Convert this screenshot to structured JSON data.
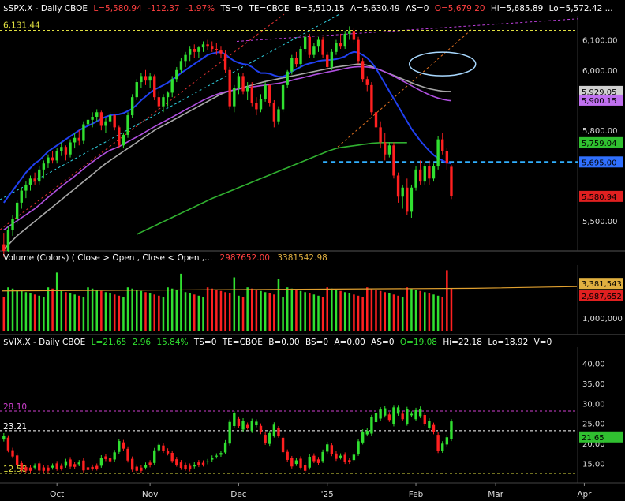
{
  "chart_data": [
    {
      "type": "candlestick",
      "panel": "price",
      "header": {
        "symbol": "$SPX.X - Daily  CBOE",
        "last": "L=5,580.94",
        "change": "-112.37",
        "pct": "-1.97%",
        "ts": "TS=0",
        "te": "TE=CBOE",
        "bid": "B=5,510.15",
        "ask": "A=5,630.49",
        "as": "AS=0",
        "open": "O=5,679.20",
        "hi": "Hi=5,685.89",
        "lo": "Lo=5,572.42 ..."
      },
      "y_ticks": [
        5500,
        5600,
        5700,
        5800,
        6000,
        6100
      ],
      "y_tick_labels": [
        "5,500.00",
        "",
        "",
        "5,800.00",
        "6,000.00",
        "6,100.00"
      ],
      "ylim": [
        5400,
        6180
      ],
      "hline": {
        "value": 6131.44,
        "label": "6,131.44"
      },
      "support_line": {
        "value": 5695
      },
      "badges": [
        {
          "label": "5,929.05",
          "value": 5929.05,
          "color": "#d0d0d0"
        },
        {
          "label": "5,900.15",
          "value": 5900.15,
          "color": "#c070f0"
        },
        {
          "label": "5,759.04",
          "value": 5759.04,
          "color": "#30c030"
        },
        {
          "label": "5,695.00",
          "value": 5695,
          "color": "#3070ff"
        },
        {
          "label": "5,580.94",
          "value": 5580.94,
          "color": "#e02020"
        }
      ],
      "candles_ohlc": [
        [
          5422,
          5460,
          5380,
          5400
        ],
        [
          5400,
          5480,
          5395,
          5470
        ],
        [
          5470,
          5520,
          5450,
          5505
        ],
        [
          5505,
          5570,
          5490,
          5560
        ],
        [
          5560,
          5610,
          5540,
          5600
        ],
        [
          5600,
          5630,
          5575,
          5620
        ],
        [
          5620,
          5650,
          5600,
          5640
        ],
        [
          5640,
          5660,
          5620,
          5630
        ],
        [
          5630,
          5680,
          5620,
          5670
        ],
        [
          5670,
          5700,
          5640,
          5690
        ],
        [
          5690,
          5720,
          5675,
          5710
        ],
        [
          5710,
          5730,
          5690,
          5700
        ],
        [
          5700,
          5740,
          5690,
          5730
        ],
        [
          5730,
          5760,
          5715,
          5745
        ],
        [
          5745,
          5750,
          5700,
          5720
        ],
        [
          5720,
          5770,
          5710,
          5760
        ],
        [
          5760,
          5790,
          5740,
          5775
        ],
        [
          5775,
          5800,
          5750,
          5765
        ],
        [
          5765,
          5830,
          5755,
          5820
        ],
        [
          5820,
          5850,
          5800,
          5835
        ],
        [
          5835,
          5860,
          5810,
          5845
        ],
        [
          5845,
          5870,
          5830,
          5860
        ],
        [
          5860,
          5865,
          5800,
          5815
        ],
        [
          5815,
          5840,
          5790,
          5830
        ],
        [
          5830,
          5860,
          5815,
          5850
        ],
        [
          5850,
          5855,
          5800,
          5810
        ],
        [
          5810,
          5815,
          5740,
          5750
        ],
        [
          5750,
          5790,
          5740,
          5785
        ],
        [
          5785,
          5860,
          5775,
          5850
        ],
        [
          5850,
          5920,
          5840,
          5910
        ],
        [
          5910,
          5970,
          5900,
          5960
        ],
        [
          5960,
          5990,
          5940,
          5980
        ],
        [
          5980,
          6000,
          5950,
          5965
        ],
        [
          5965,
          5990,
          5940,
          5980
        ],
        [
          5980,
          5985,
          5900,
          5910
        ],
        [
          5910,
          5930,
          5870,
          5880
        ],
        [
          5880,
          5920,
          5860,
          5910
        ],
        [
          5910,
          5930,
          5880,
          5925
        ],
        [
          5925,
          5980,
          5910,
          5970
        ],
        [
          5970,
          6010,
          5960,
          6000
        ],
        [
          6000,
          6040,
          5990,
          6030
        ],
        [
          6030,
          6060,
          6010,
          6050
        ],
        [
          6050,
          6080,
          6030,
          6070
        ],
        [
          6070,
          6085,
          6040,
          6060
        ],
        [
          6060,
          6080,
          6040,
          6075
        ],
        [
          6075,
          6095,
          6060,
          6085
        ],
        [
          6085,
          6100,
          6065,
          6080
        ],
        [
          6080,
          6095,
          6060,
          6070
        ],
        [
          6070,
          6090,
          6050,
          6065
        ],
        [
          6065,
          6080,
          6040,
          6055
        ],
        [
          6055,
          6065,
          5990,
          6000
        ],
        [
          6000,
          6010,
          5870,
          5880
        ],
        [
          5880,
          5950,
          5860,
          5940
        ],
        [
          5940,
          5990,
          5920,
          5980
        ],
        [
          5980,
          5990,
          5920,
          5930
        ],
        [
          5930,
          5960,
          5900,
          5945
        ],
        [
          5945,
          5960,
          5880,
          5890
        ],
        [
          5890,
          5910,
          5850,
          5870
        ],
        [
          5870,
          5920,
          5860,
          5905
        ],
        [
          5905,
          5960,
          5895,
          5950
        ],
        [
          5950,
          5955,
          5880,
          5890
        ],
        [
          5890,
          5900,
          5810,
          5830
        ],
        [
          5830,
          5880,
          5820,
          5870
        ],
        [
          5870,
          5960,
          5860,
          5950
        ],
        [
          5950,
          6000,
          5940,
          5995
        ],
        [
          5995,
          6050,
          5985,
          6040
        ],
        [
          6040,
          6060,
          6010,
          6020
        ],
        [
          6020,
          6080,
          6010,
          6070
        ],
        [
          6070,
          6120,
          6060,
          6110
        ],
        [
          6110,
          6120,
          6040,
          6050
        ],
        [
          6050,
          6090,
          6040,
          6080
        ],
        [
          6080,
          6110,
          6060,
          6100
        ],
        [
          6100,
          6110,
          6040,
          6050
        ],
        [
          6050,
          6060,
          6000,
          6010
        ],
        [
          6010,
          6070,
          6000,
          6060
        ],
        [
          6060,
          6100,
          6050,
          6090
        ],
        [
          6090,
          6120,
          6070,
          6080
        ],
        [
          6080,
          6130,
          6070,
          6120
        ],
        [
          6120,
          6145,
          6100,
          6130
        ],
        [
          6130,
          6140,
          6090,
          6100
        ],
        [
          6100,
          6110,
          6020,
          6030
        ],
        [
          6030,
          6040,
          5960,
          5970
        ],
        [
          5970,
          5980,
          5930,
          5950
        ],
        [
          5950,
          5960,
          5850,
          5860
        ],
        [
          5860,
          5880,
          5800,
          5810
        ],
        [
          5810,
          5830,
          5740,
          5760
        ],
        [
          5760,
          5790,
          5700,
          5720
        ],
        [
          5720,
          5760,
          5710,
          5750
        ],
        [
          5750,
          5760,
          5640,
          5650
        ],
        [
          5650,
          5660,
          5560,
          5580
        ],
        [
          5580,
          5620,
          5540,
          5610
        ],
        [
          5610,
          5640,
          5520,
          5530
        ],
        [
          5530,
          5620,
          5510,
          5610
        ],
        [
          5610,
          5680,
          5600,
          5670
        ],
        [
          5670,
          5700,
          5620,
          5630
        ],
        [
          5630,
          5690,
          5620,
          5680
        ],
        [
          5680,
          5700,
          5620,
          5640
        ],
        [
          5640,
          5690,
          5630,
          5680
        ],
        [
          5680,
          5780,
          5670,
          5770
        ],
        [
          5770,
          5790,
          5720,
          5730
        ],
        [
          5730,
          5740,
          5670,
          5690
        ],
        [
          5679,
          5686,
          5572,
          5581
        ]
      ],
      "ma_blue": [
        5560,
        5580,
        5600,
        5620,
        5640,
        5660,
        5675,
        5690,
        5700,
        5715,
        5730,
        5740,
        5750,
        5760,
        5770,
        5780,
        5790,
        5800,
        5808,
        5815,
        5822,
        5830,
        5838,
        5845,
        5850,
        5852,
        5853,
        5857,
        5864,
        5872,
        5885,
        5900,
        5912,
        5925,
        5935,
        5942,
        5950,
        5958,
        5968,
        5978,
        5990,
        6000,
        6010,
        6020,
        6030,
        6040,
        6050,
        6055,
        6058,
        6060,
        6052,
        6040,
        6030,
        6024,
        6020,
        6018,
        6010,
        5998,
        5990,
        5990,
        5988,
        5982,
        5978,
        5978,
        5985,
        5995,
        6003,
        6010,
        6018,
        6022,
        6025,
        6030,
        6032,
        6033,
        6034,
        6036,
        6040,
        6045,
        6055,
        6060,
        6058,
        6050,
        6040,
        6025,
        6005,
        5980,
        5955,
        5930,
        5905,
        5880,
        5855,
        5830,
        5805,
        5785,
        5765,
        5748,
        5732,
        5718,
        5707,
        5700,
        5693,
        5690
      ],
      "ma_magenta": [
        5470,
        5480,
        5490,
        5500,
        5510,
        5520,
        5530,
        5540,
        5552,
        5565,
        5578,
        5590,
        5602,
        5614,
        5625,
        5636,
        5648,
        5660,
        5672,
        5684,
        5695,
        5706,
        5716,
        5726,
        5734,
        5740,
        5746,
        5754,
        5762,
        5770,
        5778,
        5786,
        5795,
        5804,
        5812,
        5820,
        5828,
        5836,
        5844,
        5852,
        5860,
        5868,
        5876,
        5884,
        5892,
        5900,
        5907,
        5913,
        5919,
        5924,
        5928,
        5931,
        5934,
        5937,
        5940,
        5942,
        5944,
        5946,
        5948,
        5950,
        5952,
        5954,
        5956,
        5959,
        5962,
        5966,
        5970,
        5973,
        5977,
        5980,
        5984,
        5987,
        5990,
        5993,
        5996,
        5999,
        6002,
        6005,
        6008,
        6010,
        6011,
        6011,
        6010,
        6008,
        6005,
        6000,
        5994,
        5987,
        5980,
        5972,
        5964,
        5956,
        5948,
        5940,
        5932,
        5925,
        5918,
        5912,
        5907,
        5903,
        5900,
        5898
      ],
      "ma_gray": [
        5405,
        5420,
        5435,
        5450,
        5462,
        5474,
        5486,
        5498,
        5510,
        5522,
        5534,
        5546,
        5558,
        5570,
        5582,
        5594,
        5606,
        5618,
        5630,
        5642,
        5654,
        5666,
        5678,
        5690,
        5700,
        5710,
        5720,
        5730,
        5740,
        5750,
        5760,
        5770,
        5780,
        5790,
        5800,
        5808,
        5816,
        5824,
        5832,
        5840,
        5848,
        5856,
        5864,
        5872,
        5880,
        5888,
        5896,
        5904,
        5912,
        5920,
        5926,
        5930,
        5934,
        5938,
        5942,
        5946,
        5950,
        5954,
        5958,
        5962,
        5965,
        5968,
        5971,
        5974,
        5977,
        5980,
        5983,
        5986,
        5989,
        5992,
        5995,
        5998,
        6001,
        6004,
        6007,
        6010,
        6012,
        6014,
        6016,
        6018,
        6020,
        6019,
        6016,
        6012,
        6006,
        6000,
        5994,
        5988,
        5982,
        5976,
        5970,
        5964,
        5958,
        5952,
        5947,
        5942,
        5938,
        5935,
        5932,
        5930,
        5929,
        5929
      ],
      "ma_green_start_index": 30,
      "ma_green": [
        5455,
        5462,
        5469,
        5476,
        5483,
        5490,
        5497,
        5504,
        5511,
        5518,
        5525,
        5532,
        5539,
        5546,
        5553,
        5560,
        5567,
        5574,
        5580,
        5586,
        5592,
        5598,
        5604,
        5610,
        5616,
        5622,
        5628,
        5634,
        5640,
        5646,
        5652,
        5658,
        5664,
        5670,
        5676,
        5682,
        5688,
        5694,
        5700,
        5706,
        5712,
        5718,
        5724,
        5730,
        5735,
        5740,
        5743,
        5745,
        5747,
        5749,
        5751,
        5753,
        5755,
        5757,
        5758,
        5759,
        5759,
        5759,
        5759,
        5759,
        5759,
        5759
      ],
      "x_labels": [
        {
          "label": "Oct",
          "index": 12
        },
        {
          "label": "Nov",
          "index": 33
        },
        {
          "label": "Dec",
          "index": 53
        },
        {
          "label": "'25",
          "index": 73
        },
        {
          "label": "Feb",
          "index": 93
        },
        {
          "label": "Mar",
          "index": 111
        },
        {
          "label": "Apr",
          "index": 131
        }
      ]
    },
    {
      "type": "bar",
      "panel": "volume",
      "header": {
        "title": "Volume (Colors) ( Close > Open , Close < Open ,...",
        "v1": "2987652.00",
        "v2": "3381542.98"
      },
      "y_ticks": [
        1000000
      ],
      "y_tick_labels": [
        "1,000,000"
      ],
      "ylim": [
        0,
        5000000
      ],
      "badges": [
        {
          "label": "3,381,543",
          "value": 3381543,
          "color": "#e0b040"
        },
        {
          "label": "2,987,652",
          "value": 2987652,
          "color": "#e02020"
        }
      ]
    },
    {
      "type": "candlestick",
      "panel": "vix",
      "header": {
        "symbol": "$VIX.X - Daily  CBOE",
        "last": "L=21.65",
        "change": "2.96",
        "pct": "15.84%",
        "ts": "TS=0",
        "te": "TE=CBOE",
        "bid": "B=0.00",
        "bs": "BS=0",
        "ask": "A=0.00",
        "as": "AS=0",
        "open": "O=19.08",
        "hi": "Hi=22.18",
        "lo": "Lo=18.92",
        "v": "V=0"
      },
      "y_ticks": [
        15,
        20,
        25,
        30,
        35,
        40
      ],
      "y_tick_labels": [
        "15.00",
        "20.00",
        "25.00",
        "30.00",
        "35.00",
        "40.00"
      ],
      "ylim": [
        11,
        44
      ],
      "hlines": [
        {
          "value": 28.1,
          "label": "28.10",
          "color": "#d040d0"
        },
        {
          "value": 23.21,
          "label": "23.21",
          "color": "#ffffff"
        },
        {
          "value": 12.58,
          "label": "12.58",
          "color": "#e0e040"
        }
      ],
      "badges": [
        {
          "label": "21.65",
          "value": 21.65,
          "color": "#30c030"
        }
      ]
    }
  ]
}
